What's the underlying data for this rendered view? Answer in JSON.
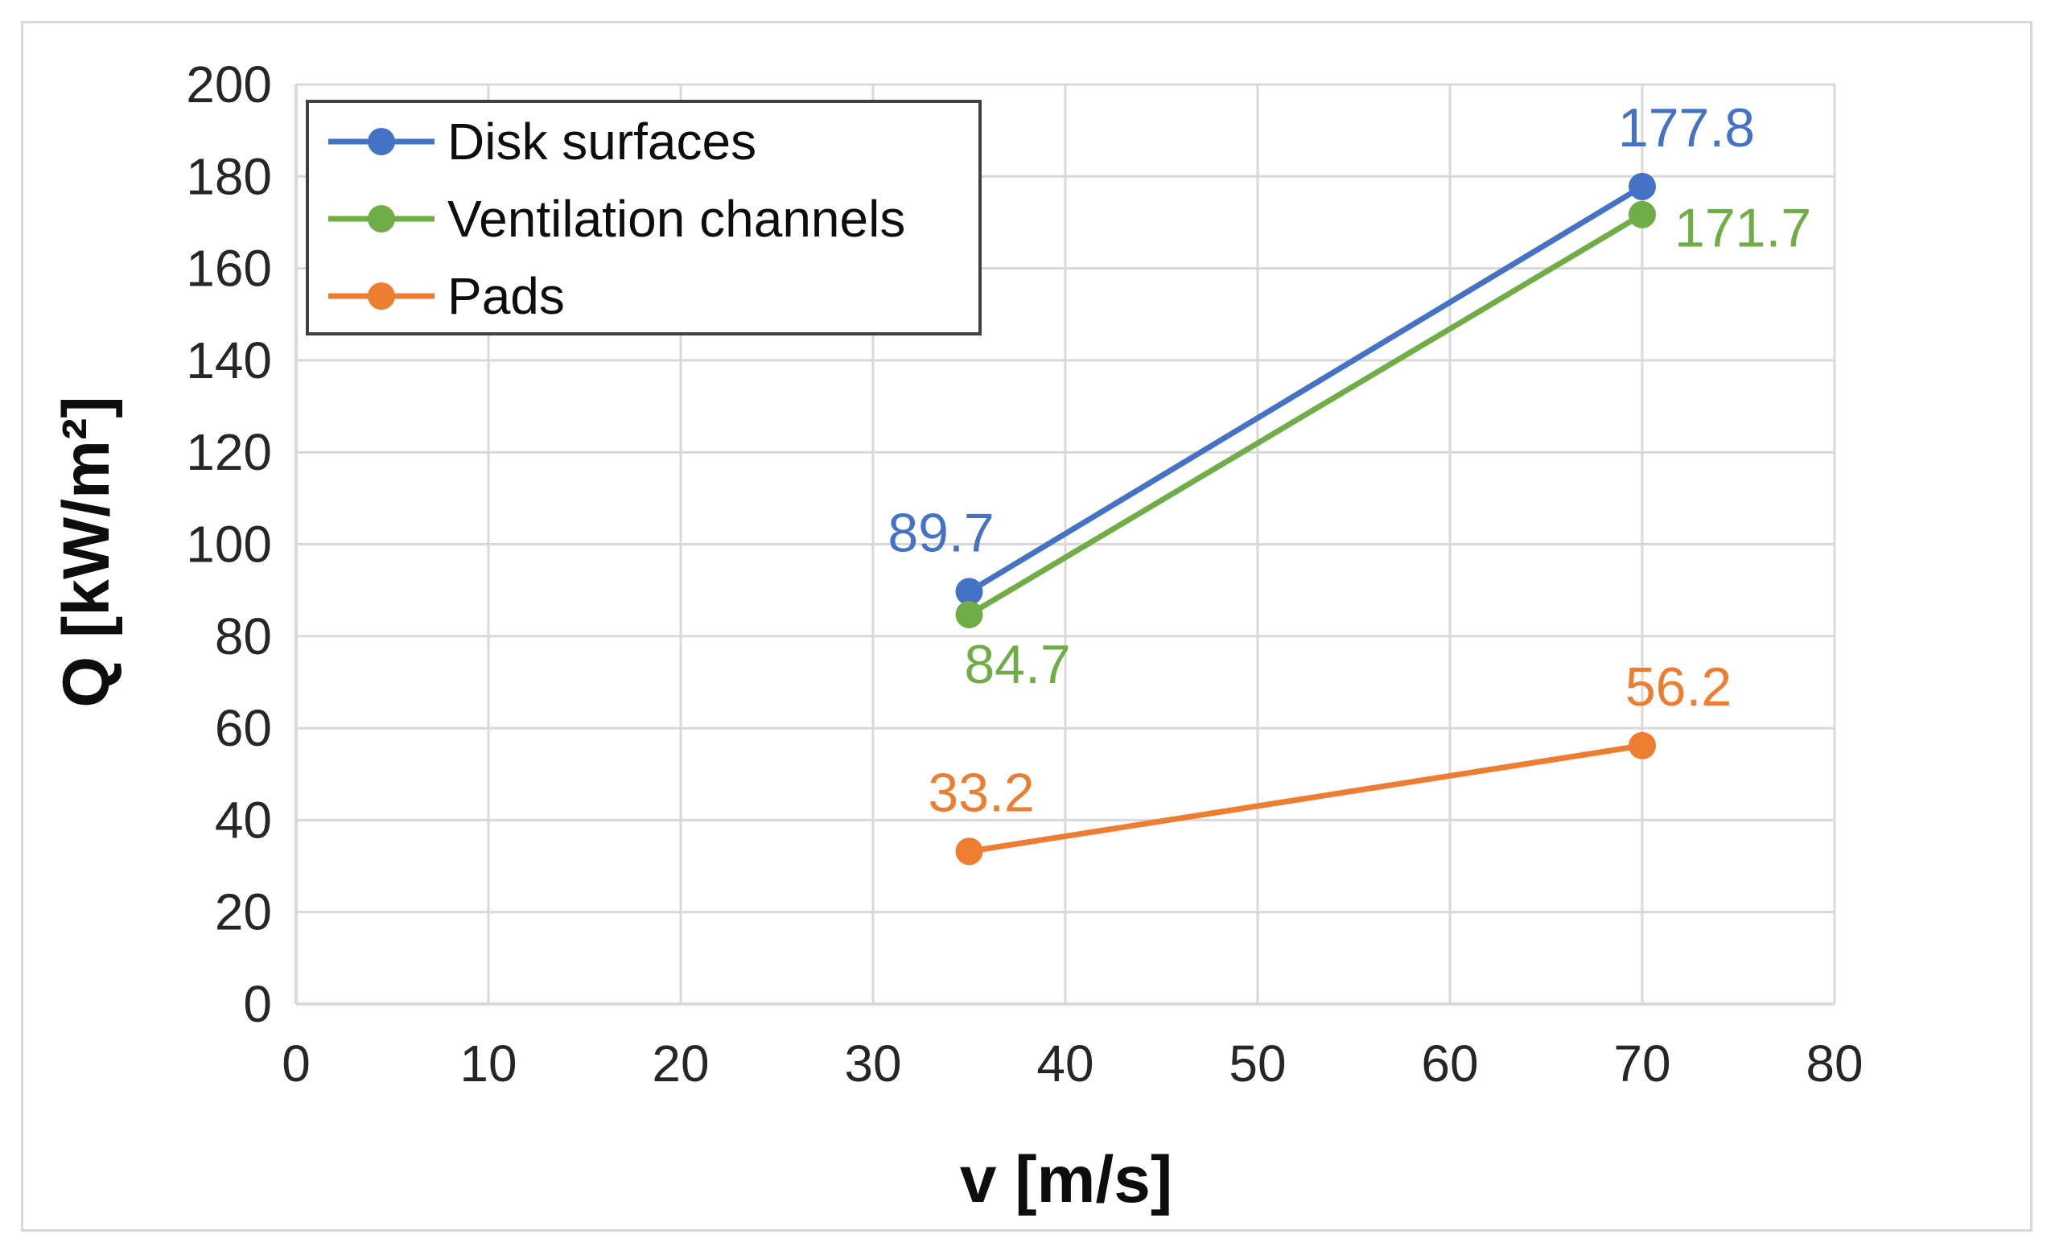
{
  "chart_data": {
    "type": "line",
    "title": "",
    "xlabel": "v [m/s]",
    "ylabel": "Q [kW/m²]",
    "xlim": [
      0,
      80
    ],
    "ylim": [
      0,
      200
    ],
    "xticks": [
      "0",
      "10",
      "20",
      "30",
      "40",
      "50",
      "60",
      "70",
      "80"
    ],
    "yticks": [
      "0",
      "20",
      "40",
      "60",
      "80",
      "100",
      "120",
      "140",
      "160",
      "180",
      "200"
    ],
    "grid": true,
    "legend_position": "top-left",
    "series": [
      {
        "name": "Disk surfaces",
        "color": "#4472c4",
        "x": [
          35,
          70
        ],
        "values": [
          89.7,
          177.8
        ],
        "labels": [
          "89.7",
          "177.8"
        ],
        "label_placement": [
          "above",
          "above"
        ]
      },
      {
        "name": "Ventilation channels",
        "color": "#70ad47",
        "x": [
          35,
          70
        ],
        "values": [
          84.7,
          171.7
        ],
        "labels": [
          "84.7",
          "171.7"
        ],
        "label_placement": [
          "below",
          "below-right"
        ]
      },
      {
        "name": "Pads",
        "color": "#ed7d31",
        "x": [
          35,
          70
        ],
        "values": [
          33.2,
          56.2
        ],
        "labels": [
          "33.2",
          "56.2"
        ],
        "label_placement": [
          "above",
          "above"
        ]
      }
    ]
  }
}
